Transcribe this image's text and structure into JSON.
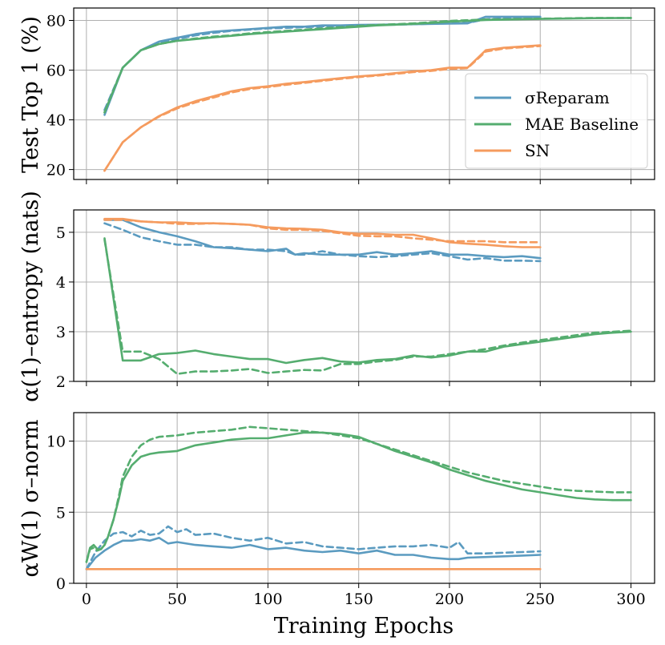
{
  "colors": {
    "sigma": "#5b9bc0",
    "mae": "#55ad6f",
    "sn": "#f59b5e"
  },
  "legend": {
    "entries": [
      {
        "name": "σReparam",
        "color": "#5b9bc0"
      },
      {
        "name": "MAE Baseline",
        "color": "#55ad6f"
      },
      {
        "name": "SN",
        "color": "#f59b5e"
      }
    ]
  },
  "xaxis": {
    "label": "Training Epochs",
    "ticks": [
      "0",
      "50",
      "100",
      "150",
      "200",
      "250",
      "300"
    ],
    "range": [
      -7,
      313
    ]
  },
  "chart_data": [
    {
      "type": "line",
      "id": "top",
      "ylabel": "Test Top 1 (%)",
      "ylim": [
        16,
        85
      ],
      "yticks": [
        "20",
        "40",
        "60",
        "80"
      ],
      "series": [
        {
          "name": "σReparam",
          "color": "#5b9bc0",
          "style": "solid",
          "x": [
            10,
            20,
            30,
            40,
            50,
            60,
            70,
            80,
            90,
            100,
            110,
            120,
            130,
            140,
            150,
            160,
            170,
            180,
            190,
            200,
            210,
            220,
            230,
            240,
            250
          ],
          "y": [
            42,
            61,
            68,
            71.5,
            73,
            74.5,
            75.5,
            76,
            76.5,
            77,
            77.5,
            77.5,
            78,
            78,
            78.2,
            78.3,
            78.4,
            78.5,
            78.6,
            78.7,
            78.8,
            81.5,
            81.5,
            81.5,
            81.5
          ]
        },
        {
          "name": "σReparam (dashed)",
          "color": "#5b9bc0",
          "style": "dashed",
          "x": [
            10,
            20,
            30,
            40,
            50,
            60,
            70,
            80,
            90,
            100,
            110,
            120,
            130,
            140,
            150,
            160,
            170,
            180,
            190,
            200,
            210,
            220,
            230,
            240,
            250
          ],
          "y": [
            44,
            61,
            68,
            71,
            72.5,
            74,
            75,
            75.8,
            76.3,
            76.8,
            77,
            77.3,
            77.6,
            77.8,
            78,
            78.2,
            78.3,
            78.5,
            78.7,
            78.8,
            79,
            80.5,
            80.8,
            81,
            81
          ]
        },
        {
          "name": "MAE Baseline",
          "color": "#55ad6f",
          "style": "solid",
          "x": [
            10,
            20,
            30,
            40,
            50,
            60,
            70,
            80,
            90,
            100,
            110,
            120,
            130,
            140,
            150,
            160,
            170,
            180,
            190,
            200,
            220,
            250,
            280,
            300
          ],
          "y": [
            43,
            61,
            68,
            70.5,
            71.8,
            72.5,
            73.2,
            73.8,
            74.5,
            75,
            75.5,
            76,
            76.5,
            77,
            77.5,
            78,
            78.3,
            78.6,
            79,
            79.5,
            80.2,
            80.6,
            80.9,
            81
          ]
        },
        {
          "name": "MAE Baseline (dashed)",
          "color": "#55ad6f",
          "style": "dashed",
          "x": [
            10,
            20,
            30,
            40,
            50,
            60,
            70,
            80,
            90,
            100,
            110,
            120,
            130,
            140,
            150,
            160,
            170,
            180,
            190,
            200,
            220,
            250,
            280,
            300
          ],
          "y": [
            43,
            61,
            68,
            70.5,
            71.8,
            72.7,
            73.5,
            74,
            74.8,
            75.3,
            75.8,
            76.3,
            76.8,
            77.3,
            77.8,
            78.2,
            78.5,
            78.8,
            79.3,
            79.8,
            80.4,
            80.7,
            81,
            81
          ]
        },
        {
          "name": "SN",
          "color": "#f59b5e",
          "style": "solid",
          "x": [
            10,
            20,
            30,
            40,
            50,
            60,
            70,
            80,
            90,
            100,
            110,
            120,
            130,
            140,
            150,
            160,
            170,
            180,
            190,
            200,
            210,
            220,
            230,
            240,
            250
          ],
          "y": [
            19.5,
            31,
            37,
            41.5,
            45,
            47.5,
            49.5,
            51.5,
            52.8,
            53.5,
            54.5,
            55.2,
            56,
            56.8,
            57.5,
            58,
            58.8,
            59.5,
            60,
            61,
            61,
            68,
            69,
            69.5,
            70
          ]
        },
        {
          "name": "SN (dashed)",
          "color": "#f59b5e",
          "style": "dashed",
          "x": [
            10,
            20,
            30,
            40,
            50,
            60,
            70,
            80,
            90,
            100,
            110,
            120,
            130,
            140,
            150,
            160,
            170,
            180,
            190,
            200,
            210,
            220,
            230,
            240,
            250
          ],
          "y": [
            19.5,
            31,
            37,
            41.3,
            44.6,
            47,
            49,
            51,
            52.4,
            53.2,
            54.1,
            54.9,
            55.7,
            56.5,
            57.2,
            57.8,
            58.5,
            59.2,
            59.7,
            60.5,
            60.8,
            67.5,
            68.7,
            69.2,
            69.7
          ]
        }
      ]
    },
    {
      "type": "line",
      "id": "mid",
      "ylabel": "α(1)–entropy (nats)",
      "ylim": [
        2,
        5.45
      ],
      "yticks": [
        "2",
        "3",
        "4",
        "5"
      ],
      "series": [
        {
          "name": "σReparam",
          "color": "#5b9bc0",
          "style": "solid",
          "x": [
            10,
            20,
            30,
            40,
            50,
            60,
            70,
            80,
            90,
            100,
            110,
            115,
            120,
            130,
            140,
            150,
            160,
            170,
            180,
            190,
            200,
            210,
            220,
            230,
            240,
            250
          ],
          "y": [
            5.25,
            5.25,
            5.1,
            5.0,
            4.92,
            4.82,
            4.7,
            4.68,
            4.65,
            4.62,
            4.67,
            4.55,
            4.58,
            4.55,
            4.55,
            4.55,
            4.6,
            4.55,
            4.58,
            4.62,
            4.55,
            4.55,
            4.52,
            4.5,
            4.52,
            4.48
          ]
        },
        {
          "name": "σReparam (dashed)",
          "color": "#5b9bc0",
          "style": "dashed",
          "x": [
            10,
            20,
            30,
            40,
            50,
            60,
            70,
            80,
            90,
            100,
            110,
            115,
            120,
            130,
            140,
            150,
            160,
            170,
            180,
            190,
            200,
            210,
            220,
            230,
            240,
            250
          ],
          "y": [
            5.18,
            5.05,
            4.9,
            4.82,
            4.75,
            4.75,
            4.7,
            4.7,
            4.65,
            4.65,
            4.62,
            4.55,
            4.55,
            4.62,
            4.55,
            4.52,
            4.5,
            4.52,
            4.55,
            4.58,
            4.52,
            4.45,
            4.48,
            4.43,
            4.43,
            4.42
          ]
        },
        {
          "name": "MAE Baseline",
          "color": "#55ad6f",
          "style": "solid",
          "x": [
            10,
            20,
            30,
            40,
            50,
            60,
            70,
            80,
            90,
            100,
            110,
            120,
            130,
            140,
            150,
            160,
            170,
            180,
            190,
            200,
            210,
            220,
            230,
            240,
            250,
            260,
            270,
            280,
            290,
            300
          ],
          "y": [
            4.88,
            2.42,
            2.42,
            2.55,
            2.57,
            2.62,
            2.55,
            2.5,
            2.45,
            2.45,
            2.37,
            2.43,
            2.47,
            2.4,
            2.38,
            2.43,
            2.45,
            2.52,
            2.48,
            2.52,
            2.6,
            2.6,
            2.7,
            2.75,
            2.8,
            2.85,
            2.9,
            2.95,
            2.98,
            3.0
          ]
        },
        {
          "name": "MAE Baseline (dashed)",
          "color": "#55ad6f",
          "style": "dashed",
          "x": [
            10,
            20,
            30,
            40,
            50,
            60,
            70,
            80,
            90,
            100,
            110,
            120,
            130,
            140,
            150,
            160,
            170,
            180,
            190,
            200,
            210,
            220,
            230,
            240,
            250,
            260,
            270,
            280,
            290,
            300
          ],
          "y": [
            4.85,
            2.6,
            2.6,
            2.45,
            2.15,
            2.2,
            2.2,
            2.22,
            2.25,
            2.17,
            2.2,
            2.23,
            2.22,
            2.35,
            2.35,
            2.4,
            2.43,
            2.5,
            2.5,
            2.55,
            2.6,
            2.65,
            2.72,
            2.78,
            2.83,
            2.88,
            2.93,
            2.98,
            3.0,
            3.02
          ]
        },
        {
          "name": "SN",
          "color": "#f59b5e",
          "style": "solid",
          "x": [
            10,
            20,
            30,
            40,
            50,
            60,
            70,
            80,
            90,
            100,
            110,
            120,
            130,
            140,
            150,
            160,
            170,
            180,
            190,
            200,
            210,
            220,
            230,
            240,
            250
          ],
          "y": [
            5.27,
            5.27,
            5.22,
            5.2,
            5.2,
            5.18,
            5.18,
            5.17,
            5.15,
            5.1,
            5.08,
            5.07,
            5.05,
            5.0,
            4.97,
            4.97,
            4.95,
            4.95,
            4.88,
            4.8,
            4.77,
            4.75,
            4.72,
            4.7,
            4.7
          ]
        },
        {
          "name": "SN (dashed)",
          "color": "#f59b5e",
          "style": "dashed",
          "x": [
            10,
            20,
            30,
            40,
            50,
            60,
            70,
            80,
            90,
            100,
            110,
            120,
            130,
            140,
            150,
            160,
            170,
            180,
            190,
            200,
            210,
            220,
            230,
            240,
            250
          ],
          "y": [
            5.25,
            5.25,
            5.22,
            5.2,
            5.17,
            5.17,
            5.18,
            5.17,
            5.15,
            5.08,
            5.05,
            5.05,
            5.03,
            4.98,
            4.93,
            4.92,
            4.92,
            4.88,
            4.85,
            4.82,
            4.82,
            4.82,
            4.8,
            4.8,
            4.8
          ]
        }
      ]
    },
    {
      "type": "line",
      "id": "bot",
      "ylabel": "αW(1) σ–norm",
      "ylim": [
        0,
        12
      ],
      "yticks": [
        "0",
        "5",
        "10"
      ],
      "series": [
        {
          "name": "σReparam",
          "color": "#5b9bc0",
          "style": "solid",
          "x": [
            0,
            5,
            10,
            15,
            20,
            25,
            30,
            35,
            40,
            45,
            50,
            60,
            70,
            80,
            90,
            100,
            110,
            120,
            130,
            140,
            150,
            160,
            170,
            180,
            190,
            200,
            205,
            210,
            220,
            230,
            240,
            250
          ],
          "y": [
            1.0,
            1.8,
            2.3,
            2.7,
            3.0,
            3.0,
            3.1,
            3.0,
            3.2,
            2.8,
            2.9,
            2.7,
            2.6,
            2.5,
            2.7,
            2.4,
            2.5,
            2.3,
            2.2,
            2.3,
            2.1,
            2.3,
            2.0,
            2.0,
            1.8,
            1.7,
            1.7,
            1.8,
            1.85,
            1.9,
            1.95,
            2.0
          ]
        },
        {
          "name": "σReparam (dashed)",
          "color": "#5b9bc0",
          "style": "dashed",
          "x": [
            0,
            5,
            10,
            15,
            20,
            25,
            30,
            35,
            40,
            45,
            50,
            55,
            60,
            70,
            80,
            90,
            100,
            110,
            120,
            130,
            140,
            150,
            160,
            170,
            180,
            190,
            200,
            205,
            210,
            220,
            230,
            240,
            250
          ],
          "y": [
            1.0,
            2.2,
            3.0,
            3.5,
            3.6,
            3.3,
            3.7,
            3.4,
            3.5,
            4.0,
            3.6,
            3.8,
            3.4,
            3.5,
            3.2,
            3.0,
            3.2,
            2.8,
            2.9,
            2.6,
            2.5,
            2.4,
            2.5,
            2.6,
            2.6,
            2.7,
            2.5,
            2.9,
            2.1,
            2.1,
            2.15,
            2.2,
            2.25
          ]
        },
        {
          "name": "MAE Baseline",
          "color": "#55ad6f",
          "style": "solid",
          "x": [
            0,
            2,
            4,
            6,
            8,
            10,
            12,
            15,
            18,
            20,
            25,
            30,
            35,
            40,
            50,
            60,
            70,
            80,
            90,
            100,
            110,
            120,
            130,
            140,
            150,
            160,
            170,
            180,
            190,
            200,
            210,
            220,
            230,
            240,
            250,
            260,
            270,
            280,
            290,
            300
          ],
          "y": [
            1.5,
            2.5,
            2.7,
            2.4,
            2.4,
            2.7,
            3.3,
            4.5,
            6.0,
            7.2,
            8.3,
            8.9,
            9.1,
            9.2,
            9.3,
            9.7,
            9.9,
            10.1,
            10.2,
            10.2,
            10.4,
            10.6,
            10.6,
            10.5,
            10.3,
            9.8,
            9.3,
            8.9,
            8.5,
            8.0,
            7.6,
            7.2,
            6.9,
            6.6,
            6.4,
            6.2,
            6.0,
            5.9,
            5.85,
            5.85
          ]
        },
        {
          "name": "MAE Baseline (dashed)",
          "color": "#55ad6f",
          "style": "dashed",
          "x": [
            0,
            2,
            4,
            6,
            8,
            10,
            12,
            15,
            18,
            20,
            25,
            30,
            35,
            40,
            50,
            60,
            70,
            80,
            90,
            100,
            110,
            120,
            130,
            140,
            150,
            160,
            170,
            180,
            190,
            200,
            210,
            220,
            230,
            240,
            250,
            260,
            270,
            280,
            290,
            300
          ],
          "y": [
            1.5,
            2.4,
            2.5,
            2.3,
            2.4,
            2.7,
            3.3,
            4.5,
            6.2,
            7.5,
            8.9,
            9.7,
            10.1,
            10.3,
            10.4,
            10.6,
            10.7,
            10.8,
            11.0,
            10.9,
            10.8,
            10.7,
            10.6,
            10.4,
            10.2,
            9.8,
            9.4,
            9.0,
            8.6,
            8.2,
            7.8,
            7.5,
            7.2,
            7.0,
            6.8,
            6.6,
            6.5,
            6.45,
            6.4,
            6.4
          ]
        },
        {
          "name": "SN",
          "color": "#f59b5e",
          "style": "solid",
          "x": [
            0,
            250
          ],
          "y": [
            1.0,
            1.0
          ]
        }
      ]
    }
  ]
}
